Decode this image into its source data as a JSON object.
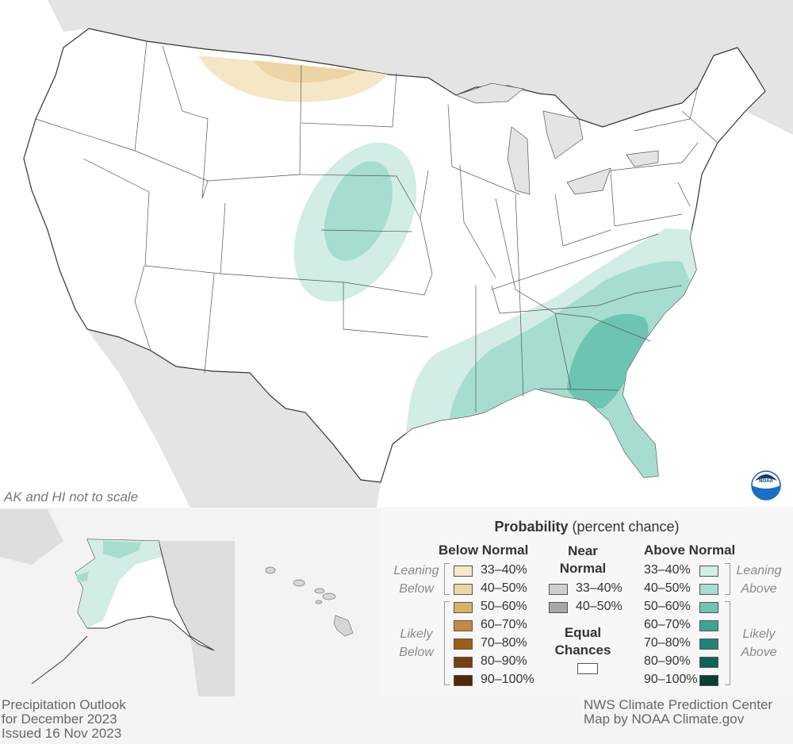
{
  "map": {
    "scale_note": "AK and HI not to scale",
    "logo": "noaa-logo",
    "colors": {
      "background": "#e6e6e6",
      "land": "#ffffff",
      "below_33_40": "#f5e6c6",
      "below_40_50": "#edd4a4",
      "above_33_40": "#d2ece6",
      "above_40_50": "#a6ddd0",
      "above_50_60": "#6ec4b2"
    }
  },
  "legend": {
    "title_bold": "Probability",
    "title_rest": "(percent chance)",
    "below": {
      "head": "Below Normal",
      "leaning": [
        "Leaning",
        "Below"
      ],
      "likely": [
        "Likely",
        "Below"
      ],
      "items": [
        "33–40%",
        "40–50%",
        "50–60%",
        "60–70%",
        "70–80%",
        "80–90%",
        "90–100%"
      ],
      "colors": [
        "#f6e8c8",
        "#eed5a4",
        "#d8b169",
        "#c28b3e",
        "#9c5d1a",
        "#784010",
        "#4e2808"
      ]
    },
    "near": {
      "head": [
        "Near",
        "Normal"
      ],
      "items": [
        "33–40%",
        "40–50%"
      ],
      "colors": [
        "#cfcfcf",
        "#a8a8a8"
      ]
    },
    "equal": {
      "head": [
        "Equal",
        "Chances"
      ]
    },
    "above": {
      "head": "Above Normal",
      "leaning": [
        "Leaning",
        "Above"
      ],
      "likely": [
        "Likely",
        "Above"
      ],
      "items": [
        "33–40%",
        "40–50%",
        "50–60%",
        "60–70%",
        "70–80%",
        "80–90%",
        "90–100%"
      ],
      "colors": [
        "#d3ede7",
        "#a8ddd1",
        "#6fc4b3",
        "#3ba596",
        "#1e8577",
        "#0e6455",
        "#073f35"
      ]
    }
  },
  "footer": {
    "left": [
      "Precipitation Outlook",
      "for December 2023",
      "Issued 16 Nov 2023"
    ],
    "right": [
      "NWS Climate Prediction Center",
      "Map by NOAA Climate.gov"
    ]
  }
}
